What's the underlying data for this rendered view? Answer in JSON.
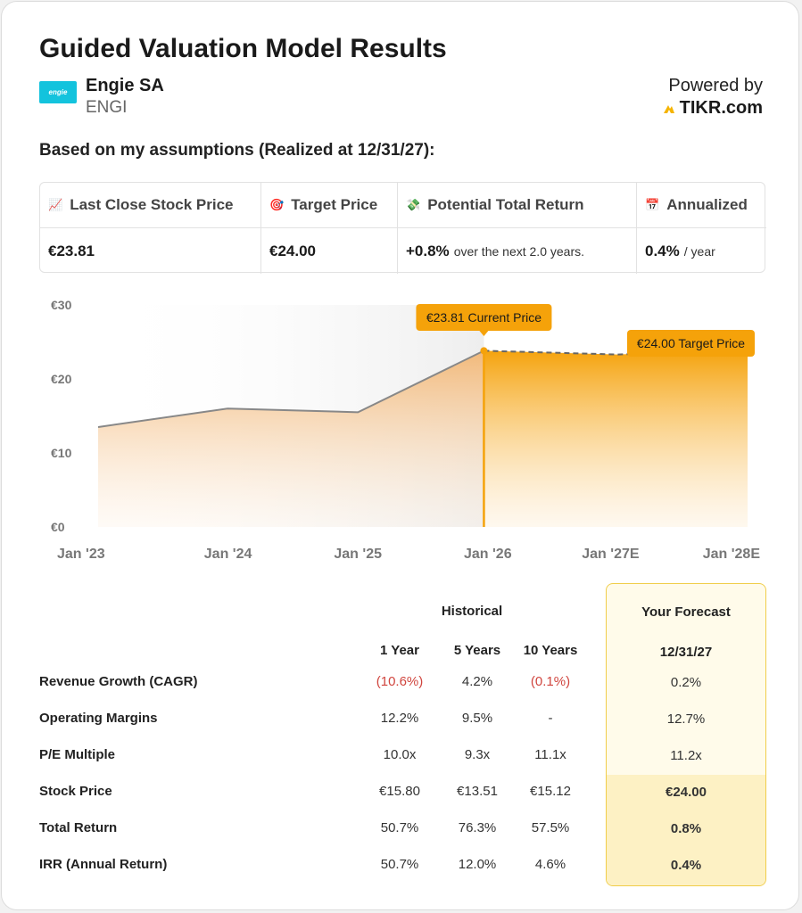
{
  "header": {
    "title": "Guided Valuation Model Results",
    "company_name": "Engie SA",
    "ticker": "ENGI",
    "logo_text": "engie",
    "powered_by": "Powered by",
    "brand": "TIKR.com"
  },
  "subtitle": "Based on my assumptions (Realized at 12/31/27):",
  "stats": [
    {
      "icon": "chart-up-icon",
      "glyph": "📈",
      "label": "Last Close Stock Price",
      "value": "€23.81",
      "suffix": ""
    },
    {
      "icon": "target-icon",
      "glyph": "🎯",
      "label": "Target Price",
      "value": "€24.00",
      "suffix": ""
    },
    {
      "icon": "money-icon",
      "glyph": "💸",
      "label": "Potential Total Return",
      "value": "+0.8%",
      "suffix": "over the next 2.0 years."
    },
    {
      "icon": "calendar-icon",
      "glyph": "📅",
      "label": "Annualized",
      "value": "0.4%",
      "suffix": "/ year"
    }
  ],
  "chart_data": {
    "type": "area",
    "x_labels": [
      "Jan '23",
      "Jan '24",
      "Jan '25",
      "Jan '26",
      "Jan '27E",
      "Jan '28E"
    ],
    "historical": [
      {
        "x": 0,
        "y": 13.5
      },
      {
        "x": 1,
        "y": 16.0
      },
      {
        "x": 2,
        "y": 15.5
      },
      {
        "x": 2.97,
        "y": 23.81
      }
    ],
    "forecast": [
      {
        "x": 2.97,
        "y": 23.81
      },
      {
        "x": 4.0,
        "y": 23.3
      },
      {
        "x": 5.0,
        "y": 24.0
      }
    ],
    "ylim": [
      0,
      30
    ],
    "y_ticks": [
      "€0",
      "€10",
      "€20",
      "€30"
    ],
    "y_tick_values": [
      0,
      10,
      20,
      30
    ],
    "current_label": "€23.81 Current Price",
    "target_label": "€24.00 Target Price",
    "colors": {
      "line": "#888888",
      "forecast": "#f5a20a",
      "label_bg": "#f5a20a"
    }
  },
  "table": {
    "historical_label": "Historical",
    "forecast_label": "Your Forecast",
    "columns": [
      "1 Year",
      "5 Years",
      "10 Years"
    ],
    "forecast_column": "12/31/27",
    "rows": [
      {
        "label": "Revenue Growth (CAGR)",
        "values": [
          "(10.6%)",
          "4.2%",
          "(0.1%)"
        ],
        "forecast": "0.2%"
      },
      {
        "label": "Operating Margins",
        "values": [
          "12.2%",
          "9.5%",
          "-"
        ],
        "forecast": "12.7%"
      },
      {
        "label": "P/E Multiple",
        "values": [
          "10.0x",
          "9.3x",
          "11.1x"
        ],
        "forecast": "11.2x"
      },
      {
        "label": "Stock Price",
        "values": [
          "€15.80",
          "€13.51",
          "€15.12"
        ],
        "forecast": "€24.00"
      },
      {
        "label": "Total Return",
        "values": [
          "50.7%",
          "76.3%",
          "57.5%"
        ],
        "forecast": "0.8%"
      },
      {
        "label": "IRR (Annual Return)",
        "values": [
          "50.7%",
          "12.0%",
          "4.6%"
        ],
        "forecast": "0.4%"
      }
    ]
  }
}
